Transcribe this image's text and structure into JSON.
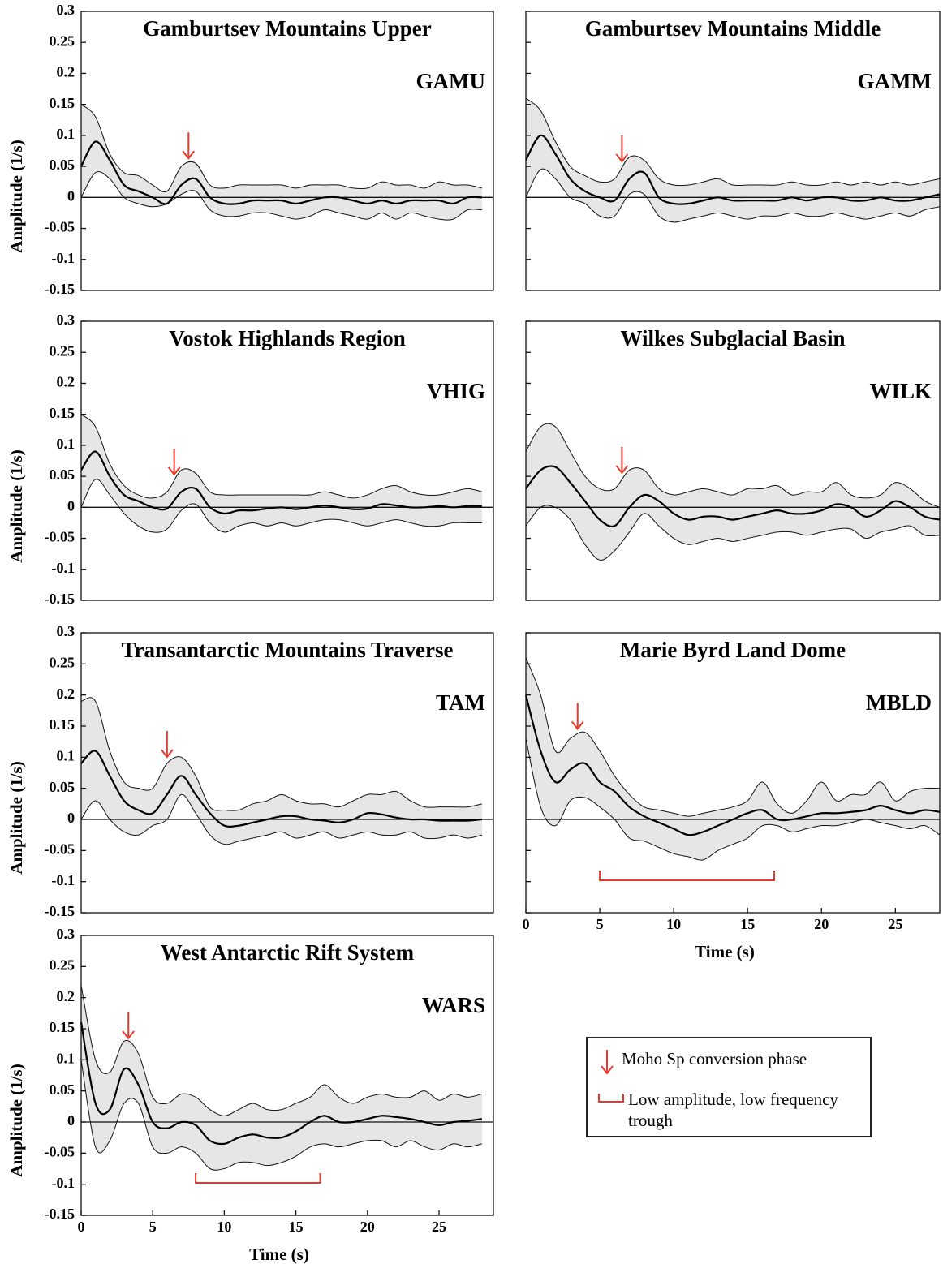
{
  "chart_data": [
    {
      "type": "line",
      "title": "Gamburtsev Mountains Upper",
      "station": "GAMU",
      "ylabel": "Amplitude (1/s)",
      "x": [
        0,
        1,
        2,
        3,
        4,
        5,
        6,
        7,
        8,
        9,
        10,
        11,
        12,
        13,
        14,
        15,
        16,
        17,
        18,
        19,
        20,
        21,
        22,
        23,
        24,
        25,
        26,
        27,
        28
      ],
      "values": [
        0.05,
        0.09,
        0.06,
        0.02,
        0.01,
        0.0,
        -0.01,
        0.02,
        0.03,
        0.0,
        -0.01,
        -0.01,
        -0.005,
        -0.005,
        -0.005,
        -0.01,
        -0.005,
        0,
        0,
        -0.005,
        -0.01,
        -0.005,
        -0.01,
        -0.005,
        -0.005,
        -0.005,
        -0.01,
        0,
        0
      ],
      "color": "#000000",
      "band": {
        "color": "#e6e6e6",
        "upper": [
          0.15,
          0.13,
          0.07,
          0.04,
          0.035,
          0.02,
          0.01,
          0.05,
          0.055,
          0.02,
          0.015,
          0.02,
          0.02,
          0.02,
          0.02,
          0.015,
          0.02,
          0.02,
          0.02,
          0.015,
          0.015,
          0.025,
          0.02,
          0.02,
          0.015,
          0.025,
          0.02,
          0.02,
          0.015
        ],
        "lower": [
          0.0,
          0.04,
          0.03,
          0.0,
          -0.01,
          -0.015,
          -0.01,
          0.005,
          0.01,
          -0.02,
          -0.03,
          -0.03,
          -0.025,
          -0.025,
          -0.03,
          -0.035,
          -0.03,
          -0.02,
          -0.025,
          -0.03,
          -0.035,
          -0.025,
          -0.035,
          -0.025,
          -0.03,
          -0.035,
          -0.035,
          -0.02,
          -0.02
        ]
      },
      "moho_x": 7.5,
      "annotation_color": "#e8392b",
      "xlim": [
        0,
        28.8
      ],
      "ylim": [
        -0.15,
        0.3
      ],
      "yticks": [
        0.3,
        0.25,
        0.2,
        0.15,
        0.1,
        0.05,
        0,
        -0.05,
        -0.1,
        -0.15
      ],
      "ytick_labels": true
    },
    {
      "type": "line",
      "title": "Gamburtsev Mountains Middle",
      "station": "GAMM",
      "x": [
        0,
        1,
        2,
        3,
        4,
        5,
        6,
        7,
        8,
        9,
        10,
        11,
        12,
        13,
        14,
        15,
        16,
        17,
        18,
        19,
        20,
        21,
        22,
        23,
        24,
        25,
        26,
        27,
        28
      ],
      "values": [
        0.06,
        0.1,
        0.07,
        0.03,
        0.01,
        0.0,
        -0.005,
        0.03,
        0.04,
        0.0,
        -0.01,
        -0.01,
        -0.005,
        0,
        -0.005,
        -0.005,
        -0.005,
        -0.005,
        0,
        -0.005,
        0,
        0,
        -0.005,
        -0.005,
        0,
        -0.005,
        -0.005,
        0,
        0.005
      ],
      "color": "#000000",
      "band": {
        "color": "#e6e6e6",
        "upper": [
          0.16,
          0.14,
          0.09,
          0.05,
          0.035,
          0.025,
          0.03,
          0.065,
          0.06,
          0.03,
          0.02,
          0.02,
          0.025,
          0.03,
          0.02,
          0.02,
          0.02,
          0.02,
          0.025,
          0.02,
          0.02,
          0.025,
          0.02,
          0.025,
          0.02,
          0.025,
          0.02,
          0.025,
          0.03
        ],
        "lower": [
          0.0,
          0.045,
          0.03,
          0.0,
          -0.01,
          -0.03,
          -0.03,
          0.005,
          0.005,
          -0.03,
          -0.04,
          -0.035,
          -0.03,
          -0.025,
          -0.03,
          -0.035,
          -0.03,
          -0.03,
          -0.025,
          -0.03,
          -0.03,
          -0.025,
          -0.03,
          -0.035,
          -0.03,
          -0.025,
          -0.03,
          -0.02,
          -0.015
        ]
      },
      "moho_x": 6.5,
      "annotation_color": "#e8392b",
      "xlim": [
        0,
        28
      ],
      "ylim": [
        -0.15,
        0.3
      ],
      "yticks": [
        0.3,
        0.25,
        0.2,
        0.15,
        0.1,
        0.05,
        0,
        -0.05,
        -0.1,
        -0.15
      ],
      "ytick_labels": false
    },
    {
      "type": "line",
      "title": "Vostok Highlands Region",
      "station": "VHIG",
      "ylabel": "Amplitude (1/s)",
      "x": [
        0,
        1,
        2,
        3,
        4,
        5,
        6,
        7,
        8,
        9,
        10,
        11,
        12,
        13,
        14,
        15,
        16,
        17,
        18,
        19,
        20,
        21,
        22,
        23,
        24,
        25,
        26,
        27,
        28
      ],
      "values": [
        0.06,
        0.09,
        0.05,
        0.02,
        0.01,
        0.0,
        -0.002,
        0.025,
        0.03,
        0.0,
        -0.01,
        -0.005,
        -0.005,
        -0.002,
        0,
        -0.003,
        0,
        0.003,
        0,
        -0.003,
        -0.002,
        0.005,
        0.003,
        0,
        0,
        0.002,
        0,
        0.002,
        0.002
      ],
      "color": "#000000",
      "band": {
        "color": "#e6e6e6",
        "upper": [
          0.15,
          0.13,
          0.07,
          0.035,
          0.02,
          0.015,
          0.025,
          0.06,
          0.055,
          0.025,
          0.02,
          0.02,
          0.02,
          0.02,
          0.02,
          0.02,
          0.02,
          0.025,
          0.02,
          0.015,
          0.02,
          0.03,
          0.035,
          0.025,
          0.02,
          0.02,
          0.025,
          0.03,
          0.025
        ],
        "lower": [
          0.0,
          0.045,
          0.02,
          -0.01,
          -0.03,
          -0.04,
          -0.035,
          -0.005,
          0.005,
          -0.025,
          -0.04,
          -0.03,
          -0.025,
          -0.03,
          -0.025,
          -0.03,
          -0.025,
          -0.02,
          -0.02,
          -0.025,
          -0.03,
          -0.025,
          -0.02,
          -0.025,
          -0.03,
          -0.03,
          -0.025,
          -0.025,
          -0.025
        ]
      },
      "moho_x": 6.5,
      "annotation_color": "#e8392b",
      "xlim": [
        0,
        28.8
      ],
      "ylim": [
        -0.15,
        0.3
      ],
      "yticks": [
        0.3,
        0.25,
        0.2,
        0.15,
        0.1,
        0.05,
        0,
        -0.05,
        -0.1,
        -0.15
      ],
      "ytick_labels": true
    },
    {
      "type": "line",
      "title": "Wilkes Subglacial Basin",
      "station": "WILK",
      "x": [
        0,
        1,
        2,
        3,
        4,
        5,
        6,
        7,
        8,
        9,
        10,
        11,
        12,
        13,
        14,
        15,
        16,
        17,
        18,
        19,
        20,
        21,
        22,
        23,
        24,
        25,
        26,
        27,
        28
      ],
      "values": [
        0.03,
        0.06,
        0.065,
        0.04,
        0.01,
        -0.02,
        -0.03,
        0.0,
        0.02,
        0.01,
        -0.01,
        -0.02,
        -0.015,
        -0.015,
        -0.02,
        -0.015,
        -0.01,
        -0.005,
        -0.01,
        -0.01,
        -0.005,
        0.005,
        0,
        -0.015,
        -0.005,
        0.01,
        0,
        -0.015,
        -0.02
      ],
      "color": "#000000",
      "band": {
        "color": "#e6e6e6",
        "upper": [
          0.09,
          0.13,
          0.13,
          0.09,
          0.05,
          0.03,
          0.03,
          0.06,
          0.06,
          0.03,
          0.02,
          0.025,
          0.03,
          0.025,
          0.02,
          0.03,
          0.03,
          0.035,
          0.02,
          0.025,
          0.025,
          0.04,
          0.02,
          0.015,
          0.02,
          0.04,
          0.03,
          0.01,
          0.0
        ],
        "lower": [
          -0.03,
          0.0,
          0.0,
          -0.02,
          -0.06,
          -0.085,
          -0.07,
          -0.04,
          -0.01,
          -0.03,
          -0.05,
          -0.06,
          -0.055,
          -0.05,
          -0.055,
          -0.05,
          -0.045,
          -0.04,
          -0.04,
          -0.045,
          -0.04,
          -0.035,
          -0.035,
          -0.05,
          -0.04,
          -0.035,
          -0.03,
          -0.045,
          -0.045
        ]
      },
      "moho_x": 6.5,
      "annotation_color": "#e8392b",
      "xlim": [
        0,
        28
      ],
      "ylim": [
        -0.15,
        0.3
      ],
      "yticks": [
        0.3,
        0.25,
        0.2,
        0.15,
        0.1,
        0.05,
        0,
        -0.05,
        -0.1,
        -0.15
      ],
      "ytick_labels": false
    },
    {
      "type": "line",
      "title": "Transantarctic Mountains Traverse",
      "station": "TAM",
      "ylabel": "Amplitude (1/s)",
      "x": [
        0,
        1,
        2,
        3,
        4,
        5,
        6,
        7,
        8,
        9,
        10,
        11,
        12,
        13,
        14,
        15,
        16,
        17,
        18,
        19,
        20,
        21,
        22,
        23,
        24,
        25,
        26,
        27,
        28
      ],
      "values": [
        0.09,
        0.11,
        0.07,
        0.03,
        0.015,
        0.01,
        0.04,
        0.07,
        0.04,
        0.01,
        -0.01,
        -0.01,
        -0.005,
        0.0,
        0.005,
        0.005,
        0,
        -0.002,
        -0.005,
        0.0,
        0.01,
        0.008,
        0.003,
        0,
        0,
        -0.002,
        -0.002,
        -0.002,
        0
      ],
      "color": "#000000",
      "band": {
        "color": "#e6e6e6",
        "upper": [
          0.19,
          0.19,
          0.11,
          0.06,
          0.05,
          0.05,
          0.09,
          0.1,
          0.07,
          0.02,
          0.015,
          0.015,
          0.025,
          0.03,
          0.04,
          0.03,
          0.025,
          0.025,
          0.02,
          0.03,
          0.04,
          0.04,
          0.045,
          0.03,
          0.02,
          0.02,
          0.02,
          0.02,
          0.025
        ],
        "lower": [
          0.0,
          0.03,
          0.0,
          -0.02,
          -0.025,
          -0.01,
          0.0,
          0.04,
          0.01,
          -0.025,
          -0.04,
          -0.035,
          -0.03,
          -0.025,
          -0.02,
          -0.03,
          -0.025,
          -0.02,
          -0.03,
          -0.025,
          -0.02,
          -0.025,
          -0.025,
          -0.02,
          -0.03,
          -0.03,
          -0.025,
          -0.03,
          -0.025
        ]
      },
      "moho_x": 6,
      "annotation_color": "#e8392b",
      "xlim": [
        0,
        28.8
      ],
      "ylim": [
        -0.15,
        0.3
      ],
      "yticks": [
        0.3,
        0.25,
        0.2,
        0.15,
        0.1,
        0.05,
        0,
        -0.05,
        -0.1,
        -0.15
      ],
      "ytick_labels": true
    },
    {
      "type": "line",
      "title": "Marie Byrd Land Dome",
      "station": "MBLD",
      "xlabel": "Time (s)",
      "x": [
        0,
        1,
        2,
        3,
        4,
        5,
        6,
        7,
        8,
        9,
        10,
        11,
        12,
        13,
        14,
        15,
        16,
        17,
        18,
        19,
        20,
        21,
        22,
        23,
        24,
        25,
        26,
        27,
        28
      ],
      "values": [
        0.2,
        0.11,
        0.06,
        0.08,
        0.09,
        0.06,
        0.045,
        0.02,
        0.005,
        -0.005,
        -0.015,
        -0.025,
        -0.02,
        -0.01,
        0.0,
        0.01,
        0.015,
        0.0,
        0.0,
        0.005,
        0.01,
        0.01,
        0.012,
        0.015,
        0.022,
        0.015,
        0.01,
        0.015,
        0.012
      ],
      "color": "#000000",
      "band": {
        "color": "#e6e6e6",
        "upper": [
          0.26,
          0.2,
          0.11,
          0.13,
          0.14,
          0.11,
          0.07,
          0.04,
          0.02,
          0.015,
          0.01,
          0.005,
          0.01,
          0.015,
          0.02,
          0.03,
          0.06,
          0.025,
          0.01,
          0.03,
          0.06,
          0.03,
          0.04,
          0.04,
          0.06,
          0.03,
          0.045,
          0.05,
          0.05
        ],
        "lower": [
          0.13,
          0.02,
          -0.01,
          0.03,
          0.035,
          0.02,
          0.0,
          -0.03,
          -0.035,
          -0.045,
          -0.055,
          -0.06,
          -0.065,
          -0.05,
          -0.04,
          -0.03,
          -0.01,
          -0.01,
          -0.02,
          -0.015,
          -0.01,
          -0.01,
          -0.005,
          0.0,
          -0.005,
          -0.01,
          -0.015,
          -0.01,
          -0.025
        ]
      },
      "moho_x": 3.5,
      "trough": [
        5,
        16.8
      ],
      "annotation_color": "#e8392b",
      "xlim": [
        0,
        28
      ],
      "ylim": [
        -0.15,
        0.3
      ],
      "xticks": [
        0,
        5,
        10,
        15,
        20,
        25
      ],
      "yticks": [
        0.3,
        0.25,
        0.2,
        0.15,
        0.1,
        0.05,
        0,
        -0.05,
        -0.1,
        -0.15
      ],
      "ytick_labels": false
    },
    {
      "type": "line",
      "title": "West Antarctic Rift System",
      "station": "WARS",
      "ylabel": "Amplitude (1/s)",
      "xlabel": "Time (s)",
      "x": [
        0,
        1,
        2,
        3,
        4,
        5,
        6,
        7,
        8,
        9,
        10,
        11,
        12,
        13,
        14,
        15,
        16,
        17,
        18,
        19,
        20,
        21,
        22,
        23,
        24,
        25,
        26,
        27,
        28
      ],
      "values": [
        0.16,
        0.03,
        0.02,
        0.085,
        0.06,
        0.0,
        -0.01,
        0.0,
        -0.005,
        -0.03,
        -0.035,
        -0.025,
        -0.02,
        -0.025,
        -0.025,
        -0.015,
        0.0,
        0.01,
        0.0,
        0.0,
        0.005,
        0.01,
        0.008,
        0.005,
        0.0,
        -0.005,
        0.0,
        0.002,
        0.005
      ],
      "color": "#000000",
      "band": {
        "color": "#e6e6e6",
        "upper": [
          0.22,
          0.1,
          0.08,
          0.13,
          0.11,
          0.04,
          0.03,
          0.045,
          0.04,
          0.02,
          0.01,
          0.02,
          0.03,
          0.02,
          0.02,
          0.03,
          0.04,
          0.06,
          0.04,
          0.03,
          0.04,
          0.045,
          0.04,
          0.04,
          0.05,
          0.035,
          0.045,
          0.04,
          0.045
        ],
        "lower": [
          0.1,
          -0.04,
          -0.03,
          0.03,
          0.03,
          -0.04,
          -0.05,
          -0.04,
          -0.05,
          -0.075,
          -0.075,
          -0.065,
          -0.065,
          -0.07,
          -0.065,
          -0.055,
          -0.04,
          -0.035,
          -0.04,
          -0.035,
          -0.03,
          -0.03,
          -0.04,
          -0.03,
          -0.04,
          -0.045,
          -0.035,
          -0.04,
          -0.035
        ]
      },
      "moho_x": 3.3,
      "trough": [
        8,
        16.7
      ],
      "annotation_color": "#e8392b",
      "xlim": [
        0,
        28.8
      ],
      "ylim": [
        -0.15,
        0.3
      ],
      "xticks": [
        0,
        5,
        10,
        15,
        20,
        25
      ],
      "yticks": [
        0.3,
        0.25,
        0.2,
        0.15,
        0.1,
        0.05,
        0,
        -0.05,
        -0.1,
        -0.15
      ],
      "ytick_labels": true
    }
  ],
  "legend": {
    "items": [
      "Moho Sp conversion phase",
      "Low amplitude, low frequency trough"
    ]
  }
}
